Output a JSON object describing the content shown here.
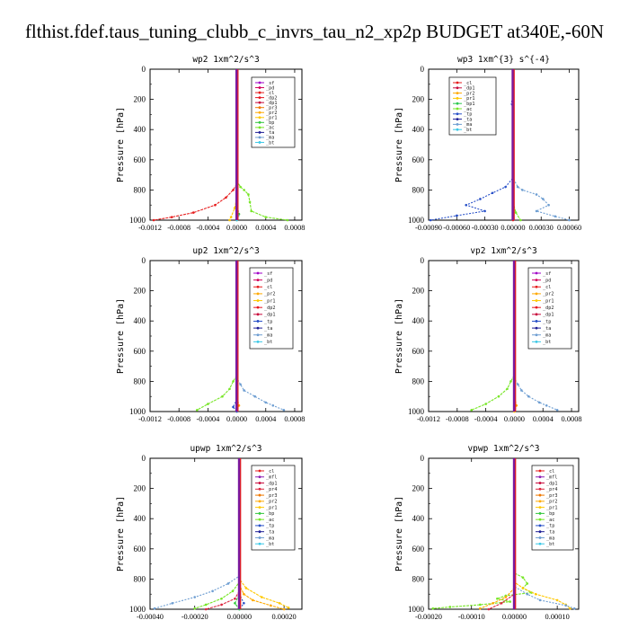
{
  "figure_title": "flthist.fdef.taus_tuning_clubb_c_invrs_tau_n2_xp2p  BUDGET at340E,-60N",
  "colors": {
    "sf": "#a000c8",
    "pd": "#d2005a",
    "cl": "#e61e1e",
    "dp1": "#c80a3c",
    "dp2": "#e6141e",
    "pr1": "#ffc800",
    "pr2": "#ffaa00",
    "pr3": "#f07800",
    "pr4": "#dc2840",
    "mfl": "#8c1eb4",
    "bp1": "#2dc850",
    "bp": "#32c83c",
    "ac": "#78e628",
    "tp": "#2850c8",
    "ta": "#1e1e96",
    "ma": "#6e9ed2",
    "bt": "#3cc8e6",
    "bar": "#7a1aa0"
  },
  "chart_data": [
    {
      "type": "line",
      "title": "wp2   1xm^2/s^3",
      "ylabel": "Pressure [hPa]",
      "xlim": [
        -0.0012,
        0.0009
      ],
      "ylim": [
        1000,
        0
      ],
      "xticks": [
        "-0.0012",
        "-0.0008",
        "-0.0004",
        "0.0000",
        "0.0004",
        "0.0008"
      ],
      "xtick_values": [
        -0.0012,
        -0.0008,
        -0.0004,
        0.0,
        0.0004,
        0.0008
      ],
      "yticks": [
        "0",
        "200",
        "400",
        "600",
        "800",
        "1000"
      ],
      "legend": [
        "_sf",
        "_pd",
        "_cl",
        "_dp2",
        "_dp1",
        "_pr3",
        "_pr2",
        "_pr1",
        "_bp",
        "_ac",
        "_ta",
        "_ma",
        "_bt"
      ],
      "series": [
        {
          "name": "_cl",
          "key": "cl",
          "x": [
            0,
            0,
            -5e-05,
            -0.00015,
            -0.0003,
            -0.0006,
            -0.0009,
            -0.00115
          ],
          "y": [
            0,
            760,
            800,
            850,
            900,
            950,
            980,
            1000
          ]
        },
        {
          "name": "_ac",
          "key": "ac",
          "x": [
            0,
            0,
            5e-05,
            0.0001,
            0.00016,
            0.00018,
            0.0002,
            0.0004,
            0.0007
          ],
          "y": [
            0,
            740,
            780,
            800,
            830,
            880,
            940,
            980,
            1000
          ]
        },
        {
          "name": "_pr1",
          "key": "pr1",
          "x": [
            0,
            0,
            -3e-05,
            -8e-05,
            -0.0001
          ],
          "y": [
            0,
            850,
            920,
            980,
            1000
          ]
        },
        {
          "name": "_bp",
          "key": "bp",
          "x": [
            0,
            0,
            3e-05,
            0.0
          ],
          "y": [
            0,
            900,
            960,
            1000
          ]
        },
        {
          "name": "_bt",
          "key": "bt",
          "x": [
            0,
            0,
            2e-05,
            0
          ],
          "y": [
            0,
            900,
            970,
            1000
          ]
        }
      ]
    },
    {
      "type": "line",
      "title": "wp3   1xm^{3} s^{-4}",
      "ylabel": "Pressure [hPa]",
      "xlim": [
        -0.0009,
        0.0007
      ],
      "ylim": [
        1000,
        0
      ],
      "xticks": [
        "-0.00090",
        "-0.00060",
        "-0.00030",
        "0.00000",
        "0.00030",
        "0.00060"
      ],
      "xtick_values": [
        -0.0009,
        -0.0006,
        -0.0003,
        0.0,
        0.0003,
        0.0006
      ],
      "yticks": [
        "0",
        "200",
        "400",
        "600",
        "800",
        "1000"
      ],
      "legend": [
        "_cl",
        "_dp1",
        "_pr2",
        "_pr1",
        "_bp1",
        "_ac",
        "_tp",
        "_ta",
        "_ma",
        "_bt"
      ],
      "series": [
        {
          "name": "_tp",
          "key": "tp",
          "x": [
            0,
            0,
            -2e-05,
            0,
            0,
            -8e-05,
            -0.00022,
            -0.00035,
            -0.0005,
            -0.0003,
            -0.0006,
            -0.00088
          ],
          "y": [
            0,
            180,
            230,
            260,
            720,
            780,
            820,
            860,
            900,
            940,
            970,
            1000
          ]
        },
        {
          "name": "_ma",
          "key": "ma",
          "x": [
            0,
            0,
            5e-05,
            0.0001,
            0.00025,
            0.00032,
            0.00038,
            0.00025,
            0.00045,
            0.0006
          ],
          "y": [
            0,
            720,
            780,
            800,
            830,
            860,
            900,
            940,
            975,
            1000
          ]
        },
        {
          "name": "_ac",
          "key": "ac",
          "x": [
            0,
            0,
            3e-05,
            8e-05
          ],
          "y": [
            0,
            880,
            950,
            1000
          ]
        },
        {
          "name": "_cl",
          "key": "cl",
          "x": [
            0,
            0
          ],
          "y": [
            0,
            1000
          ]
        }
      ]
    },
    {
      "type": "line",
      "title": "up2   1xm^2/s^3",
      "ylabel": "Pressure [hPa]",
      "xlim": [
        -0.0012,
        0.0009
      ],
      "ylim": [
        1000,
        0
      ],
      "xticks": [
        "-0.0012",
        "-0.0008",
        "-0.0004",
        "0.0000",
        "0.0004",
        "0.0008"
      ],
      "xtick_values": [
        -0.0012,
        -0.0008,
        -0.0004,
        0.0,
        0.0004,
        0.0008
      ],
      "yticks": [
        "0",
        "200",
        "400",
        "600",
        "800",
        "1000"
      ],
      "legend": [
        "_sf",
        "_pd",
        "_cl",
        "_pr2",
        "_pr1",
        "_dp2",
        "_dp1",
        "_tp",
        "_ta",
        "_ma",
        "_bt"
      ],
      "series": [
        {
          "name": "_ac",
          "key": "ac",
          "x": [
            0,
            0,
            -5e-05,
            -0.0001,
            -0.0002,
            -0.0004,
            -0.00055
          ],
          "y": [
            0,
            760,
            800,
            850,
            900,
            950,
            990
          ]
        },
        {
          "name": "_ma",
          "key": "ma",
          "x": [
            0,
            0,
            5e-05,
            0.0001,
            0.00025,
            0.0004,
            0.0005,
            0.00065
          ],
          "y": [
            0,
            780,
            820,
            860,
            900,
            940,
            960,
            990
          ]
        },
        {
          "name": "_pr2",
          "key": "pr2",
          "x": [
            0,
            0,
            3e-05,
            0.0
          ],
          "y": [
            0,
            900,
            960,
            1000
          ]
        },
        {
          "name": "_tp",
          "key": "tp",
          "x": [
            0,
            0,
            -5e-05,
            0
          ],
          "y": [
            0,
            920,
            970,
            1000
          ]
        }
      ]
    },
    {
      "type": "line",
      "title": "vp2   1xm^2/s^3",
      "ylabel": "Pressure [hPa]",
      "xlim": [
        -0.0012,
        0.0009
      ],
      "ylim": [
        1000,
        0
      ],
      "xticks": [
        "-0.0012",
        "-0.0008",
        "-0.0004",
        "0.0000",
        "0.0004",
        "0.0008"
      ],
      "xtick_values": [
        -0.0012,
        -0.0008,
        -0.0004,
        0.0,
        0.0004,
        0.0008
      ],
      "yticks": [
        "0",
        "200",
        "400",
        "600",
        "800",
        "1000"
      ],
      "legend": [
        "_sf",
        "_pd",
        "_cl",
        "_pr2",
        "_pr1",
        "_dp2",
        "_dp1",
        "_tp",
        "_ta",
        "_ma",
        "_bt"
      ],
      "series": [
        {
          "name": "_ac",
          "key": "ac",
          "x": [
            0,
            0,
            -5e-05,
            -0.0001,
            -0.00022,
            -0.0004,
            -0.0006
          ],
          "y": [
            0,
            760,
            800,
            850,
            900,
            950,
            990
          ]
        },
        {
          "name": "_ma",
          "key": "ma",
          "x": [
            0,
            0,
            5e-05,
            0.0001,
            0.0002,
            0.00035,
            0.00045,
            0.0006
          ],
          "y": [
            0,
            780,
            820,
            860,
            900,
            940,
            960,
            990
          ]
        },
        {
          "name": "_pr2",
          "key": "pr2",
          "x": [
            0,
            0,
            3e-05,
            0.0
          ],
          "y": [
            0,
            900,
            960,
            1000
          ]
        }
      ]
    },
    {
      "type": "line",
      "title": "upwp   1xm^2/s^3",
      "ylabel": "Pressure [hPa]",
      "xlim": [
        -0.0004,
        0.00028
      ],
      "ylim": [
        1000,
        0
      ],
      "xticks": [
        "-0.00040",
        "-0.00020",
        "0.00000",
        "0.00020"
      ],
      "xtick_values": [
        -0.0004,
        -0.0002,
        0.0,
        0.0002
      ],
      "yticks": [
        "0",
        "200",
        "400",
        "600",
        "800",
        "1000"
      ],
      "legend": [
        "_cl",
        "_mfl",
        "_dp1",
        "_pr4",
        "_pr3",
        "_pr2",
        "_pr1",
        "_bp",
        "_ac",
        "_tp",
        "_ta",
        "_ma",
        "_bt"
      ],
      "series": [
        {
          "name": "_ma",
          "key": "ma",
          "x": [
            0,
            0,
            -5e-05,
            -0.00012,
            -0.0002,
            -0.0003,
            -0.00038
          ],
          "y": [
            0,
            780,
            830,
            880,
            920,
            960,
            995
          ]
        },
        {
          "name": "_ac",
          "key": "ac",
          "x": [
            0,
            0,
            -3e-05,
            -8e-05,
            -0.00015,
            -0.0002
          ],
          "y": [
            0,
            820,
            880,
            930,
            970,
            995
          ]
        },
        {
          "name": "_pr4",
          "key": "pr4",
          "x": [
            0,
            0,
            -2e-05,
            -8e-05,
            -0.00015
          ],
          "y": [
            0,
            880,
            930,
            970,
            1000
          ]
        },
        {
          "name": "_pr1",
          "key": "pr1",
          "x": [
            0,
            0,
            3e-05,
            0.0001,
            0.00018,
            0.00022
          ],
          "y": [
            0,
            800,
            860,
            920,
            960,
            990
          ]
        },
        {
          "name": "_pr2",
          "key": "pr2",
          "x": [
            0,
            0,
            2e-05,
            6e-05,
            0.00014,
            0.0002
          ],
          "y": [
            0,
            840,
            900,
            940,
            975,
            1000
          ]
        },
        {
          "name": "_tp",
          "key": "tp",
          "x": [
            0,
            0,
            2e-05,
            0
          ],
          "y": [
            0,
            900,
            960,
            1000
          ]
        },
        {
          "name": "_bp",
          "key": "bp",
          "x": [
            0,
            0,
            -2e-05,
            0
          ],
          "y": [
            0,
            900,
            960,
            1000
          ]
        }
      ]
    },
    {
      "type": "line",
      "title": "vpwp   1xm^2/s^3",
      "ylabel": "Pressure [hPa]",
      "xlim": [
        -0.0002,
        0.00015
      ],
      "ylim": [
        1000,
        0
      ],
      "xticks": [
        "-0.00020",
        "-0.00010",
        "0.00000",
        "0.00010"
      ],
      "xtick_values": [
        -0.0002,
        -0.0001,
        0.0,
        0.0001
      ],
      "yticks": [
        "0",
        "200",
        "400",
        "600",
        "800",
        "1000"
      ],
      "legend": [
        "_cl",
        "_mfl",
        "_dp1",
        "_pr4",
        "_pr3",
        "_pr2",
        "_pr1",
        "_bp",
        "_ac",
        "_tp",
        "_ta",
        "_ma",
        "_bt"
      ],
      "series": [
        {
          "name": "_ac",
          "key": "ac",
          "x": [
            0,
            0,
            2e-05,
            3e-05,
            2e-05,
            4e-05,
            -2e-05,
            -4e-05,
            -1e-05,
            -8e-05,
            -0.00015,
            -0.00019
          ],
          "y": [
            0,
            760,
            790,
            830,
            860,
            890,
            910,
            930,
            950,
            970,
            985,
            995
          ]
        },
        {
          "name": "_pr1",
          "key": "pr1",
          "x": [
            0,
            0,
            2e-05,
            5e-05,
            0.0001,
            0.00012,
            0.00013
          ],
          "y": [
            0,
            820,
            860,
            900,
            940,
            970,
            995
          ]
        },
        {
          "name": "_ma",
          "key": "ma",
          "x": [
            0,
            0,
            3e-05,
            6e-05,
            0.00012,
            0.00014
          ],
          "y": [
            0,
            850,
            900,
            940,
            975,
            995
          ]
        },
        {
          "name": "_pr2",
          "key": "pr2",
          "x": [
            0,
            0,
            -2e-05,
            -5e-05,
            -8e-05
          ],
          "y": [
            0,
            860,
            920,
            960,
            995
          ]
        },
        {
          "name": "_pr4",
          "key": "pr4",
          "x": [
            0,
            0,
            -3e-05,
            -6e-05
          ],
          "y": [
            0,
            900,
            960,
            1000
          ]
        }
      ]
    }
  ]
}
